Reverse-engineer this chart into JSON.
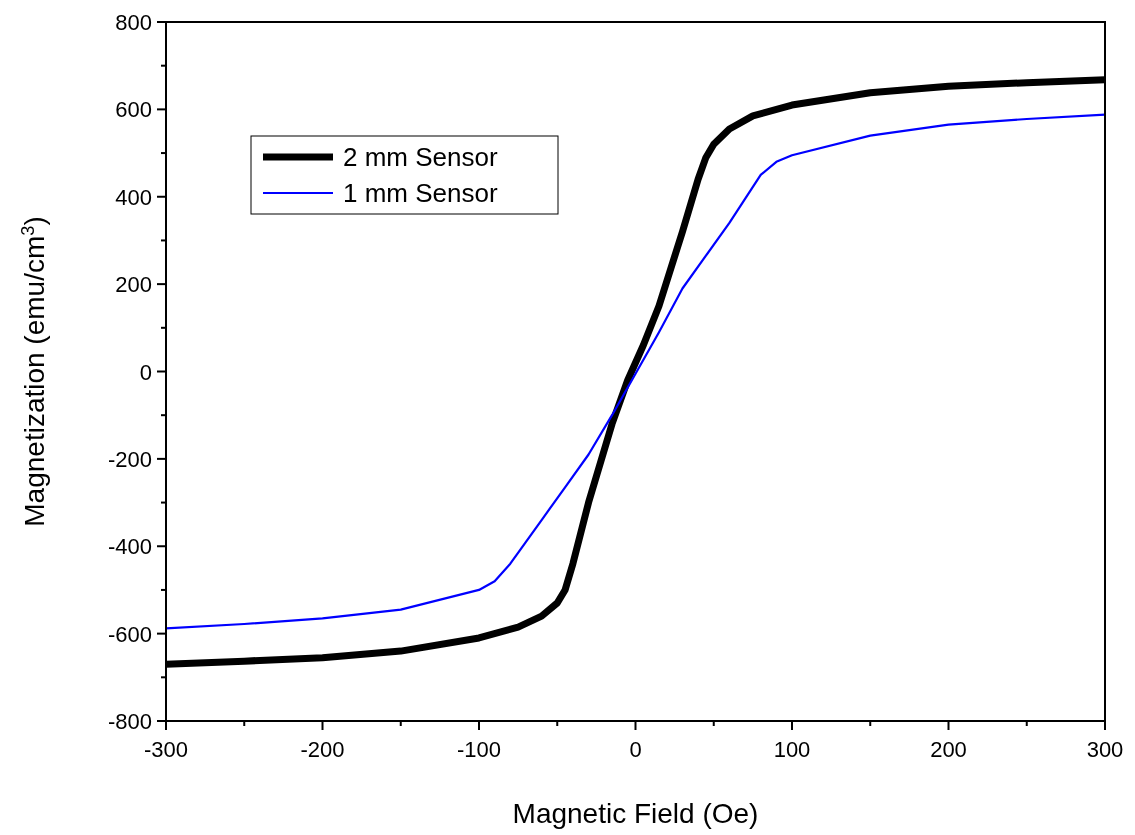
{
  "chart_data": {
    "type": "line",
    "xlabel": "Magnetic Field (Oe)",
    "ylabel": "Magnetization (emu/cm$^{3}$)",
    "xlim": [
      -300,
      300
    ],
    "xticks": [
      -300,
      -200,
      -100,
      0,
      100,
      200,
      300
    ],
    "ylim": [
      -800,
      800
    ],
    "yticks": [
      -800,
      -600,
      -400,
      -200,
      0,
      200,
      400,
      600,
      800
    ],
    "grid": false,
    "legend": "top left",
    "line_style": "solid",
    "series": [
      {
        "name": "2 mm Sensor",
        "color": "#000000",
        "x": [
          -300,
          -250,
          -200,
          -150,
          -100,
          -75,
          -60,
          -50,
          -45,
          -40,
          -30,
          -15,
          -5,
          0,
          5,
          15,
          30,
          40,
          45,
          50,
          60,
          75,
          100,
          150,
          200,
          250,
          300
        ],
        "values": [
          -670,
          -663,
          -655,
          -640,
          -610,
          -585,
          -560,
          -530,
          -500,
          -440,
          -300,
          -120,
          -20,
          20,
          60,
          150,
          320,
          440,
          490,
          520,
          555,
          585,
          610,
          638,
          653,
          661,
          668
        ]
      },
      {
        "name": "1 mm Sensor",
        "color": "#0000ff",
        "x": [
          -300,
          -250,
          -200,
          -150,
          -100,
          -90,
          -80,
          -70,
          -60,
          -45,
          -30,
          -15,
          0,
          15,
          30,
          45,
          60,
          70,
          80,
          90,
          100,
          150,
          200,
          250,
          300
        ],
        "values": [
          -588,
          -578,
          -565,
          -545,
          -500,
          -480,
          -440,
          -390,
          -340,
          -265,
          -190,
          -100,
          -5,
          90,
          190,
          265,
          340,
          395,
          450,
          480,
          495,
          540,
          565,
          578,
          588
        ]
      }
    ]
  }
}
